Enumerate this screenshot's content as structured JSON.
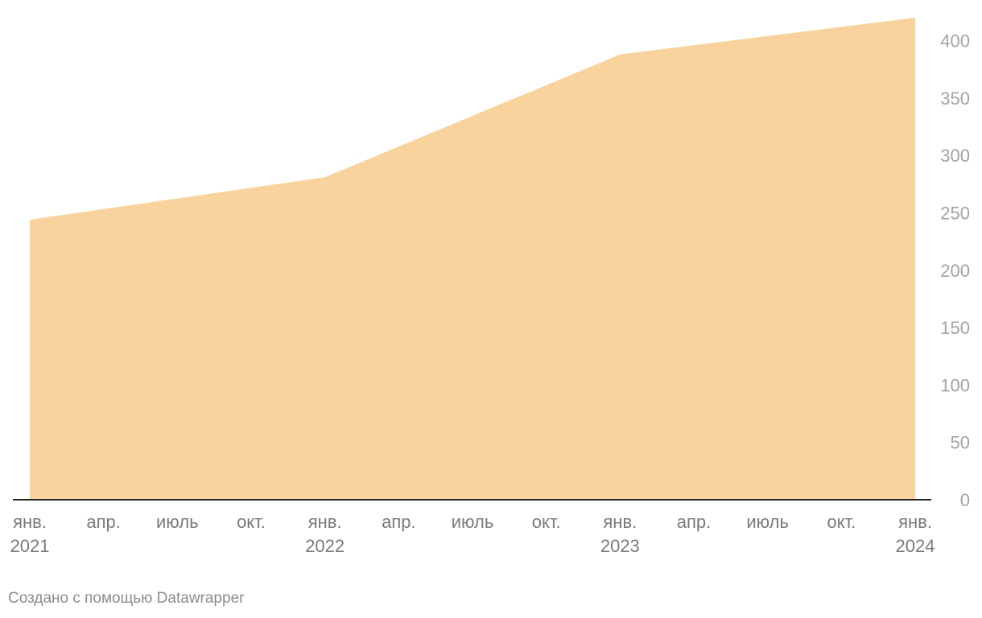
{
  "chart_data": {
    "type": "area",
    "x": [
      "2021-01",
      "2022-01",
      "2023-01",
      "2024-01"
    ],
    "series": [
      {
        "values": [
          244,
          281,
          388,
          420
        ]
      }
    ],
    "ylim": [
      0,
      420
    ],
    "yticks": [
      0,
      50,
      100,
      150,
      200,
      250,
      300,
      350,
      400
    ],
    "y_axis_side": "right",
    "grid": false,
    "x_tick_labels": [
      {
        "month": "янв.",
        "year": "2021"
      },
      {
        "month": "апр.",
        "year": ""
      },
      {
        "month": "июль",
        "year": ""
      },
      {
        "month": "окт.",
        "year": ""
      },
      {
        "month": "янв.",
        "year": "2022"
      },
      {
        "month": "апр.",
        "year": ""
      },
      {
        "month": "июль",
        "year": ""
      },
      {
        "month": "окт.",
        "year": ""
      },
      {
        "month": "янв.",
        "year": "2023"
      },
      {
        "month": "апр.",
        "year": ""
      },
      {
        "month": "июль",
        "year": ""
      },
      {
        "month": "окт.",
        "year": ""
      },
      {
        "month": "янв.",
        "year": "2024"
      }
    ],
    "colors": {
      "area": "#f9d39d",
      "baseline": "#222222"
    }
  },
  "footer": {
    "credit": "Создано с помощью Datawrapper"
  }
}
